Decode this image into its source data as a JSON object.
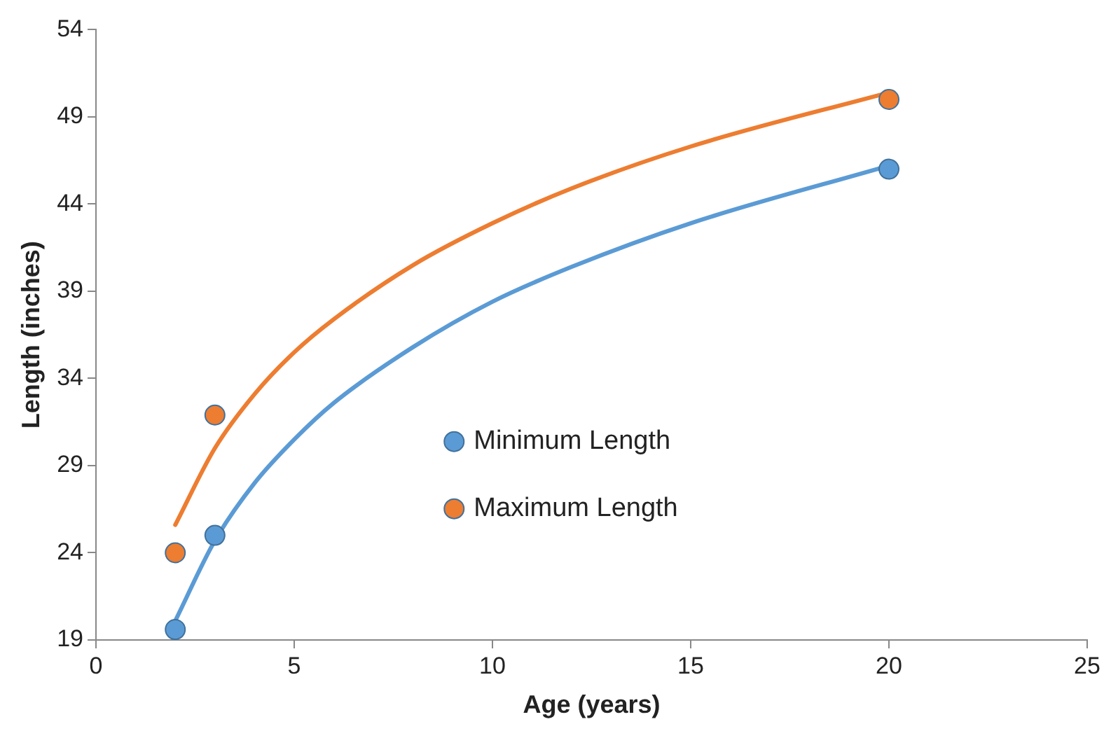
{
  "chart_data": {
    "type": "scatter",
    "xlabel": "Age (years)",
    "ylabel": "Length (inches)",
    "xlim": [
      0,
      25
    ],
    "xticks": [
      0,
      5,
      10,
      15,
      20,
      25
    ],
    "ylim": [
      19,
      54
    ],
    "yticks": [
      19,
      24,
      29,
      34,
      39,
      44,
      49,
      54
    ],
    "grid": false,
    "legend": "center",
    "marker": "circle",
    "series": [
      {
        "type": "line",
        "color": "#5b9bd5",
        "x": [
          2,
          3,
          4,
          5,
          6,
          8,
          10,
          12,
          15,
          20
        ],
        "values": [
          20.1,
          24.7,
          28.0,
          30.5,
          32.6,
          35.8,
          38.4,
          40.4,
          42.9,
          46.2
        ],
        "marker": "none"
      },
      {
        "type": "line",
        "color": "#ed7d31",
        "x": [
          2,
          3,
          4,
          5,
          6,
          8,
          10,
          12,
          15,
          20
        ],
        "values": [
          25.6,
          30.0,
          33.1,
          35.5,
          37.4,
          40.5,
          42.9,
          44.9,
          47.3,
          50.4
        ],
        "marker": "none"
      },
      {
        "name": "Minimum Length",
        "color": "#5b9bd5",
        "x": [
          2,
          3,
          20
        ],
        "values": [
          19.6,
          25.0,
          46.0
        ]
      },
      {
        "name": "Maximum Length",
        "color": "#ed7d31",
        "x": [
          2,
          3,
          20
        ],
        "values": [
          24.0,
          31.9,
          50.0
        ]
      }
    ]
  }
}
